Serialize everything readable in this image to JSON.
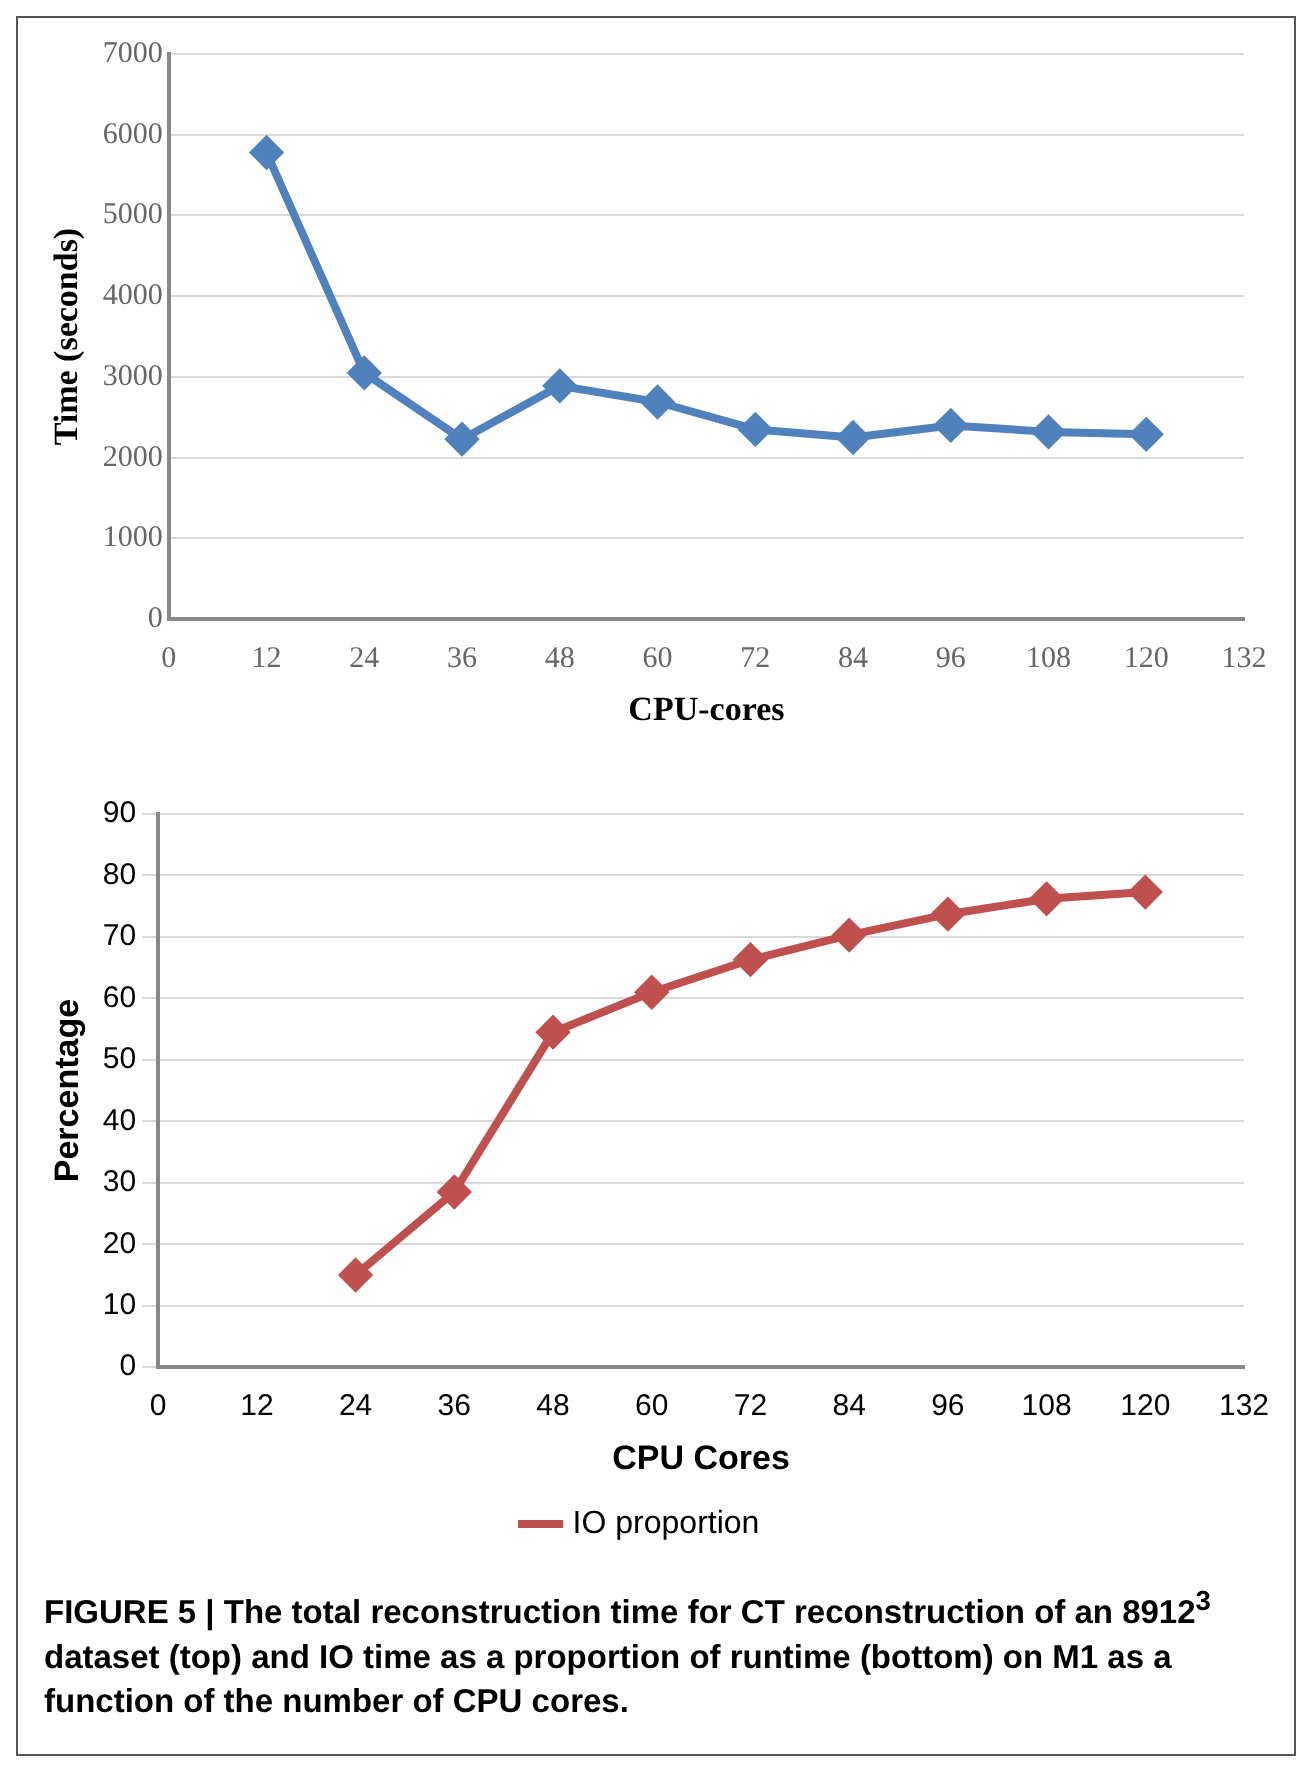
{
  "chart_data": [
    {
      "type": "line",
      "xlabel": "CPU-cores",
      "ylabel": "Time (seconds)",
      "x": [
        12,
        24,
        36,
        48,
        60,
        72,
        84,
        96,
        108,
        120
      ],
      "series": [
        {
          "color": "#4f81bd",
          "values": [
            5780,
            3050,
            2230,
            2890,
            2690,
            2350,
            2250,
            2400,
            2320,
            2290
          ]
        }
      ],
      "xlim": [
        0,
        132
      ],
      "xticks": [
        0,
        12,
        24,
        36,
        48,
        60,
        72,
        84,
        96,
        108,
        120,
        132
      ],
      "ylim": [
        0,
        7000
      ],
      "yticks": [
        0,
        1000,
        2000,
        3000,
        4000,
        5000,
        6000,
        7000
      ],
      "grid": "y",
      "marker": "diamond",
      "line_style": "solid"
    },
    {
      "type": "line",
      "xlabel": "CPU Cores",
      "ylabel": "Percentage",
      "x": [
        24,
        36,
        48,
        60,
        72,
        84,
        96,
        108,
        120
      ],
      "series": [
        {
          "name": "IO proportion",
          "color": "#c0504d",
          "values": [
            15,
            28.5,
            54.5,
            61,
            66.3,
            70.3,
            73.7,
            76.2,
            77.3
          ]
        }
      ],
      "xlim": [
        0,
        132
      ],
      "xticks": [
        0,
        12,
        24,
        36,
        48,
        60,
        72,
        84,
        96,
        108,
        120,
        132
      ],
      "ylim": [
        0,
        90
      ],
      "yticks": [
        0,
        10,
        20,
        30,
        40,
        50,
        60,
        70,
        80,
        90
      ],
      "grid": "y",
      "marker": "diamond",
      "line_style": "solid",
      "legend": "bottom",
      "annotations": [
        "FIGURE 5 | The total reconstruction time for CT reconstruction of an 8912$^{3}$ dataset (top) and IO time as a proportion of runtime (bottom) on M1 as a function of the number of CPU cores."
      ]
    }
  ]
}
